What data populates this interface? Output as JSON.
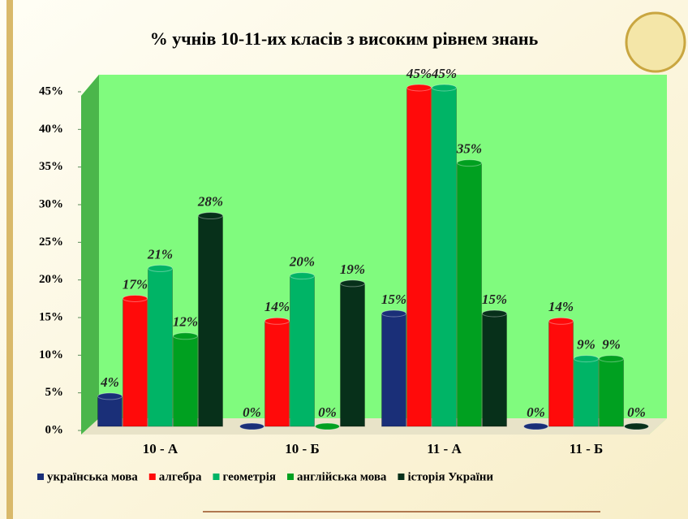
{
  "chart_data": {
    "type": "bar",
    "title": "% учнів 10-11-их класів з високим рівнем знань",
    "categories": [
      "10 - А",
      "10 - Б",
      "11 - А",
      "11 - Б"
    ],
    "series": [
      {
        "name": "українська мова",
        "color": "#1a2f78",
        "values": [
          4,
          0,
          15,
          0
        ],
        "value_labels": [
          "4%",
          "0%",
          "15%",
          "0%"
        ]
      },
      {
        "name": "алгебра",
        "color": "#ff0a0a",
        "values": [
          17,
          14,
          45,
          14
        ],
        "value_labels": [
          "17%",
          "14%",
          "45%",
          "14%"
        ]
      },
      {
        "name": "геометрія",
        "color": "#00b466",
        "values": [
          21,
          20,
          45,
          9
        ],
        "value_labels": [
          "21%",
          "20%",
          "45%",
          "9%"
        ]
      },
      {
        "name": "англійська мова",
        "color": "#00a020",
        "values": [
          12,
          0,
          35,
          9
        ],
        "value_labels": [
          "12%",
          "0%",
          "35%",
          "9%"
        ]
      },
      {
        "name": "історія України",
        "color": "#07301a",
        "values": [
          28,
          19,
          15,
          0
        ],
        "value_labels": [
          "28%",
          "19%",
          "15%",
          "0%"
        ]
      }
    ],
    "ylim": [
      0,
      45
    ],
    "yticks": [
      {
        "value": 0,
        "label": "0%"
      },
      {
        "value": 5,
        "label": "5%"
      },
      {
        "value": 10,
        "label": "10%"
      },
      {
        "value": 15,
        "label": "15%"
      },
      {
        "value": 20,
        "label": "20%"
      },
      {
        "value": 25,
        "label": "25%"
      },
      {
        "value": 30,
        "label": "30%"
      },
      {
        "value": 35,
        "label": "35%"
      },
      {
        "value": 40,
        "label": "40%"
      },
      {
        "value": 45,
        "label": "45%"
      }
    ]
  }
}
